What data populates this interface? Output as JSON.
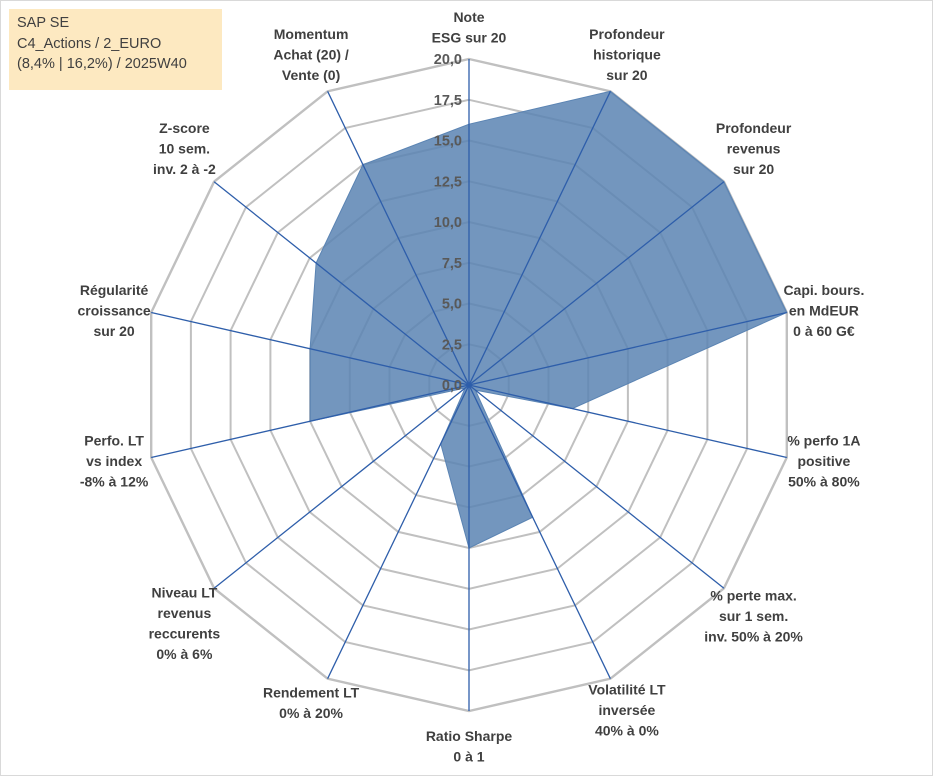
{
  "info": {
    "line1": "SAP SE",
    "line2": "C4_Actions / 2_EURO",
    "line3": "(8,4% | 16,2%) / 2025W40"
  },
  "chart_data": {
    "type": "radar",
    "title": "",
    "rmax": 20,
    "tick_step": 2.5,
    "ticks": [
      "0,0",
      "2,5",
      "5,0",
      "7,5",
      "10,0",
      "12,5",
      "15,0",
      "17,5",
      "20,0"
    ],
    "categories": [
      [
        "Note",
        "ESG sur 20"
      ],
      [
        "Profondeur",
        "historique",
        "sur 20"
      ],
      [
        "Profondeur",
        "revenus",
        "sur 20"
      ],
      [
        "Capi. bours.",
        "en MdEUR",
        "0 à 60 G€"
      ],
      [
        "% perfo 1A",
        "positive",
        "50% à 80%"
      ],
      [
        "% perte max.",
        "sur 1 sem.",
        "inv. 50% à 20%"
      ],
      [
        "Volatilité LT",
        "inversée",
        "40% à 0%"
      ],
      [
        "Ratio Sharpe",
        "0 à 1"
      ],
      [
        "Rendement LT",
        "0% à 20%"
      ],
      [
        "Niveau LT",
        "revenus",
        "reccurents",
        "0% à 6%"
      ],
      [
        "Perfo. LT",
        "vs index",
        "-8% à 12%"
      ],
      [
        "Régularité",
        "croissance",
        "sur 20"
      ],
      [
        "Z-score",
        "10 sem.",
        "inv. 2 à -2"
      ],
      [
        "Momentum",
        "Achat (20) /",
        "Vente (0)"
      ]
    ],
    "series": [
      {
        "name": "SAP SE",
        "values": [
          16.0,
          20.0,
          20.0,
          20.0,
          6.5,
          0.5,
          9.0,
          10.0,
          4.0,
          0.3,
          10.0,
          10.0,
          12.0,
          15.0
        ]
      }
    ],
    "colors": {
      "fill": "#5b84b3",
      "stroke": "#4472c4",
      "grid": "#c0c0c0",
      "spoke": "#2e5eaa"
    }
  }
}
